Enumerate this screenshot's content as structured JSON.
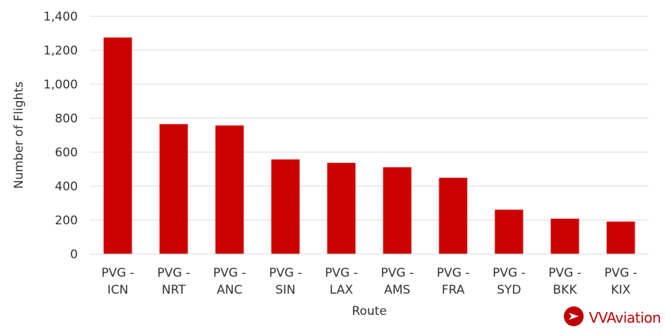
{
  "chart_data": {
    "type": "bar",
    "categories": [
      [
        "PVG -",
        "ICN"
      ],
      [
        "PVG -",
        "NRT"
      ],
      [
        "PVG -",
        "ANC"
      ],
      [
        "PVG -",
        "SIN"
      ],
      [
        "PVG -",
        "LAX"
      ],
      [
        "PVG -",
        "AMS"
      ],
      [
        "PVG -",
        "FRA"
      ],
      [
        "PVG -",
        "SYD"
      ],
      [
        "PVG -",
        "BKK"
      ],
      [
        "PVG -",
        "KIX"
      ]
    ],
    "values": [
      1275,
      765,
      757,
      557,
      537,
      511,
      449,
      261,
      208,
      191
    ],
    "xlabel": "Route",
    "ylabel": "Number of Flights",
    "ylim": [
      0,
      1400
    ],
    "yticks": [
      0,
      200,
      400,
      600,
      800,
      1000,
      1200,
      1400
    ],
    "ytick_labels": [
      "0",
      "200",
      "400",
      "600",
      "800",
      "1,000",
      "1,200",
      "1,400"
    ],
    "grid": true,
    "bar_color": "#cc0000",
    "grid_color": "#d9d9d9"
  },
  "logo": {
    "text": "VVAviation",
    "color": "#c00000",
    "icon": "vv-aviation-logo-icon"
  }
}
